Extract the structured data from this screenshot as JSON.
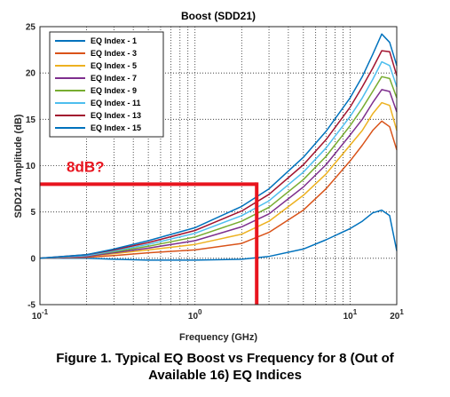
{
  "chart_data": {
    "type": "line",
    "title": "Boost (SDD21)",
    "xlabel": "Frequency (GHz)",
    "ylabel": "SDD21 Amplitude (dB)",
    "x_scale": "log",
    "xlim": [
      0.1,
      20
    ],
    "ylim": [
      -5,
      25
    ],
    "grid": true,
    "legend_position": "top-left",
    "x_ticks": [
      {
        "value": 0.1,
        "base": "10",
        "exp": "-1"
      },
      {
        "value": 1,
        "base": "10",
        "exp": "0"
      },
      {
        "value": 10,
        "base": "10",
        "exp": "1"
      },
      {
        "value": 20,
        "base": "20",
        "exp": "1"
      }
    ],
    "y_ticks": [
      "-5",
      "0",
      "5",
      "10",
      "15",
      "20",
      "25"
    ],
    "x": [
      0.1,
      0.2,
      0.3,
      0.5,
      1,
      2,
      3,
      5,
      7,
      10,
      12,
      14,
      16,
      18,
      20
    ],
    "series": [
      {
        "name": "EQ Index - 1",
        "color": "#0072bd",
        "values": [
          0,
          0,
          -0.1,
          -0.2,
          -0.2,
          -0.1,
          0.2,
          1.0,
          2.0,
          3.2,
          4.0,
          4.9,
          5.2,
          4.6,
          0.8
        ]
      },
      {
        "name": "EQ Index - 3",
        "color": "#d95319",
        "values": [
          0,
          0.1,
          0.3,
          0.6,
          0.9,
          1.6,
          2.8,
          5.2,
          7.5,
          10.5,
          12.2,
          13.8,
          14.8,
          14.2,
          11.7
        ]
      },
      {
        "name": "EQ Index - 5",
        "color": "#edb120",
        "values": [
          0,
          0.2,
          0.5,
          0.9,
          1.5,
          2.6,
          4.0,
          6.8,
          9.1,
          12.2,
          13.8,
          15.6,
          16.8,
          16.5,
          13.8
        ]
      },
      {
        "name": "EQ Index - 7",
        "color": "#7e2f8e",
        "values": [
          0,
          0.2,
          0.6,
          1.1,
          1.9,
          3.4,
          4.8,
          7.7,
          10.1,
          13.3,
          15.0,
          16.8,
          18.2,
          18.0,
          15.8
        ]
      },
      {
        "name": "EQ Index - 9",
        "color": "#77ac30",
        "values": [
          0,
          0.3,
          0.7,
          1.3,
          2.3,
          4.0,
          5.5,
          8.5,
          11.0,
          14.3,
          16.2,
          18.0,
          19.6,
          19.4,
          17.3
        ]
      },
      {
        "name": "EQ Index - 11",
        "color": "#4dbeee",
        "values": [
          0,
          0.3,
          0.8,
          1.5,
          2.7,
          4.6,
          6.2,
          9.3,
          11.9,
          15.3,
          17.3,
          19.3,
          21.2,
          20.8,
          18.5
        ]
      },
      {
        "name": "EQ Index - 13",
        "color": "#a2142f",
        "values": [
          0,
          0.4,
          0.9,
          1.7,
          3.0,
          5.1,
          6.9,
          10.1,
          12.8,
          16.3,
          18.5,
          20.5,
          22.4,
          22.3,
          19.7
        ]
      },
      {
        "name": "EQ Index - 15",
        "color": "#0072bd",
        "values": [
          0,
          0.4,
          1.0,
          1.9,
          3.3,
          5.6,
          7.5,
          10.9,
          13.7,
          17.3,
          19.6,
          22.0,
          24.2,
          23.3,
          20.8
        ]
      }
    ],
    "annotation": {
      "text": "8dB?",
      "color": "#e8141e",
      "x": 2.5,
      "y": 8,
      "line_bottom": -5
    }
  },
  "caption": {
    "line1": "Figure 1.  Typical EQ Boost vs Frequency for 8 (Out of",
    "line2": "Available 16) EQ Indices"
  }
}
